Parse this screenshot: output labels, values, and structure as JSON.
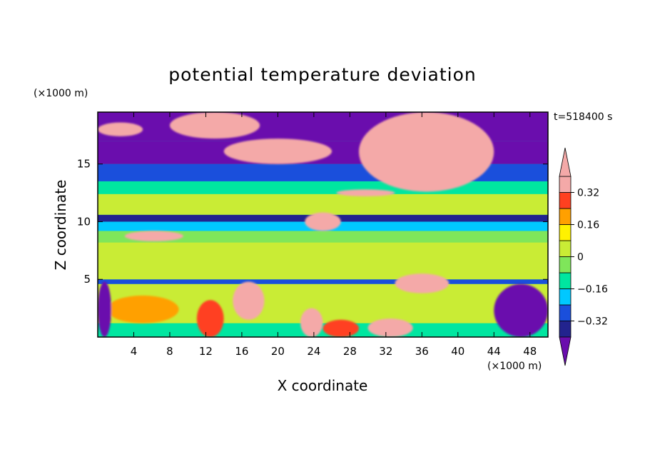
{
  "chart_data": {
    "type": "heatmap",
    "title": "potential temperature deviation",
    "xlabel": "X coordinate",
    "ylabel": "Z coordinate",
    "x_unit": "(×1000 m)",
    "y_unit": "(×1000 m)",
    "time_label": "t=518400 s",
    "xlim": [
      0,
      50
    ],
    "ylim": [
      0,
      19.5
    ],
    "x_ticks": [
      4,
      8,
      12,
      16,
      20,
      24,
      28,
      32,
      36,
      40,
      44,
      48
    ],
    "y_ticks": [
      5,
      10,
      15
    ],
    "colorbar": {
      "levels": [
        -0.4,
        -0.32,
        -0.24,
        -0.16,
        -0.08,
        0,
        0.08,
        0.16,
        0.24,
        0.32,
        0.4
      ],
      "tick_labels": [
        "0.32",
        "0.16",
        "0",
        "−0.16",
        "−0.32"
      ],
      "tick_values": [
        0.32,
        0.16,
        0,
        -0.16,
        -0.32
      ],
      "colors": [
        "#6a0dad",
        "#22238e",
        "#1a4fdc",
        "#00c8ff",
        "#00e6a0",
        "#7fe65a",
        "#c9ec35",
        "#fff200",
        "#ffa000",
        "#ff4020",
        "#f4a9a8"
      ],
      "extend": "both"
    },
    "layers": [
      {
        "z": [
          0,
          1.2
        ],
        "value": -0.12
      },
      {
        "z": [
          1.2,
          4.6
        ],
        "value": 0.02
      },
      {
        "z": [
          4.6,
          5.0
        ],
        "value": -0.3
      },
      {
        "z": [
          5.0,
          8.2
        ],
        "value": 0.06
      },
      {
        "z": [
          8.2,
          9.2
        ],
        "value": -0.05
      },
      {
        "z": [
          9.2,
          10.0
        ],
        "value": -0.22
      },
      {
        "z": [
          10.0,
          10.6
        ],
        "value": -0.34
      },
      {
        "z": [
          10.6,
          12.4
        ],
        "value": 0.04
      },
      {
        "z": [
          12.4,
          13.5
        ],
        "value": -0.1
      },
      {
        "z": [
          13.5,
          15.0
        ],
        "value": -0.28
      },
      {
        "z": [
          15.0,
          17.0
        ],
        "value": -0.45
      },
      {
        "z": [
          17.0,
          19.5
        ],
        "value": -0.45
      }
    ],
    "features": [
      {
        "x": [
          11,
          14
        ],
        "z": [
          0,
          3.2
        ],
        "value": 0.3
      },
      {
        "x": [
          1,
          9
        ],
        "z": [
          1.2,
          3.6
        ],
        "value": 0.22
      },
      {
        "x": [
          22.5,
          25
        ],
        "z": [
          0,
          2.5
        ],
        "value": 0.34
      },
      {
        "x": [
          25,
          29
        ],
        "z": [
          0,
          1.5
        ],
        "value": 0.26
      },
      {
        "x": [
          30,
          35
        ],
        "z": [
          0,
          1.6
        ],
        "value": 0.34
      },
      {
        "x": [
          15,
          18.5
        ],
        "z": [
          1.5,
          4.8
        ],
        "value": 0.45
      },
      {
        "x": [
          44,
          50
        ],
        "z": [
          0,
          4.6
        ],
        "value": -0.45
      },
      {
        "x": [
          0,
          1.5
        ],
        "z": [
          0,
          4.8
        ],
        "value": -0.45
      },
      {
        "x": [
          33,
          39
        ],
        "z": [
          3.8,
          5.5
        ],
        "value": 0.45
      },
      {
        "x": [
          23,
          27
        ],
        "z": [
          9.2,
          10.8
        ],
        "value": 0.45
      },
      {
        "x": [
          3,
          9.5
        ],
        "z": [
          8.3,
          9.2
        ],
        "value": 0.45
      },
      {
        "x": [
          26.5,
          33
        ],
        "z": [
          12.2,
          12.8
        ],
        "value": 0.45
      },
      {
        "x": [
          14,
          26
        ],
        "z": [
          15.0,
          17.2
        ],
        "value": 0.45
      },
      {
        "x": [
          29,
          44
        ],
        "z": [
          12.6,
          19.5
        ],
        "value": 0.45
      },
      {
        "x": [
          8,
          18
        ],
        "z": [
          17.2,
          19.5
        ],
        "value": 0.45
      },
      {
        "x": [
          0,
          5
        ],
        "z": [
          17.4,
          18.6
        ],
        "value": 0.45
      }
    ]
  }
}
